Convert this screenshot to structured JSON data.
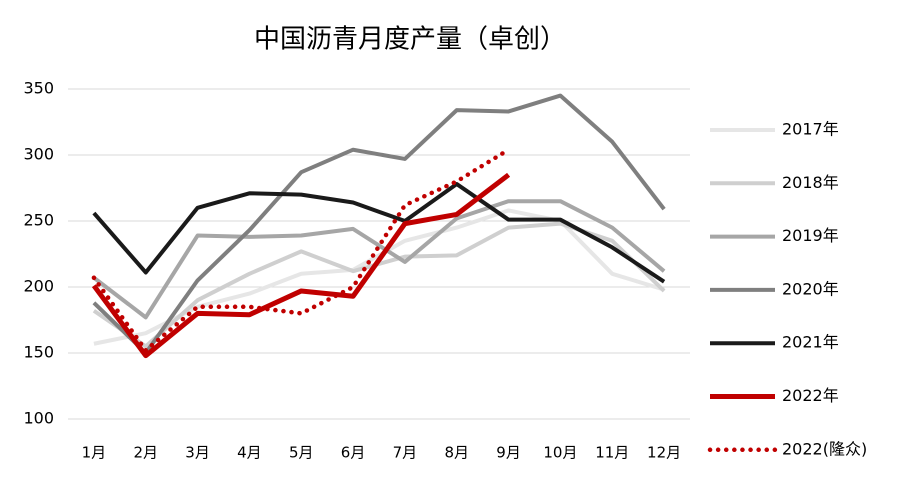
{
  "chart_data": {
    "type": "line",
    "title": "中国沥青月度产量（卓创）",
    "categories": [
      "1月",
      "2月",
      "3月",
      "4月",
      "5月",
      "6月",
      "7月",
      "8月",
      "9月",
      "10月",
      "11月",
      "12月"
    ],
    "ylim": [
      100,
      350
    ],
    "yticks": [
      100,
      150,
      200,
      250,
      300,
      350
    ],
    "grid": true,
    "legend": "right",
    "series": [
      {
        "name": "2017年",
        "color": "#e6e6e6",
        "values": [
          157,
          165,
          185,
          195,
          210,
          213,
          235,
          245,
          258,
          250,
          210,
          198
        ]
      },
      {
        "name": "2018年",
        "color": "#cfcfcf",
        "values": [
          182,
          155,
          190,
          210,
          227,
          212,
          223,
          224,
          245,
          248,
          235,
          197
        ]
      },
      {
        "name": "2019年",
        "color": "#a6a6a6",
        "values": [
          207,
          177,
          239,
          238,
          239,
          244,
          219,
          252,
          265,
          265,
          245,
          212
        ]
      },
      {
        "name": "2020年",
        "color": "#7f7f7f",
        "values": [
          188,
          150,
          205,
          243,
          287,
          304,
          297,
          334,
          333,
          345,
          310,
          259
        ]
      },
      {
        "name": "2021年",
        "color": "#1a1a1a",
        "values": [
          256,
          211,
          260,
          271,
          270,
          264,
          250,
          278,
          251,
          251,
          230,
          204
        ]
      },
      {
        "name": "2022年",
        "color": "#c00000",
        "values": [
          201,
          148,
          180,
          179,
          197,
          193,
          248,
          255,
          285,
          null,
          null,
          null
        ]
      },
      {
        "name": "2022(隆众)",
        "color": "#c00000",
        "style": "dotted",
        "values": [
          207,
          152,
          185,
          185,
          180,
          200,
          262,
          280,
          304,
          null,
          null,
          null
        ]
      }
    ]
  }
}
